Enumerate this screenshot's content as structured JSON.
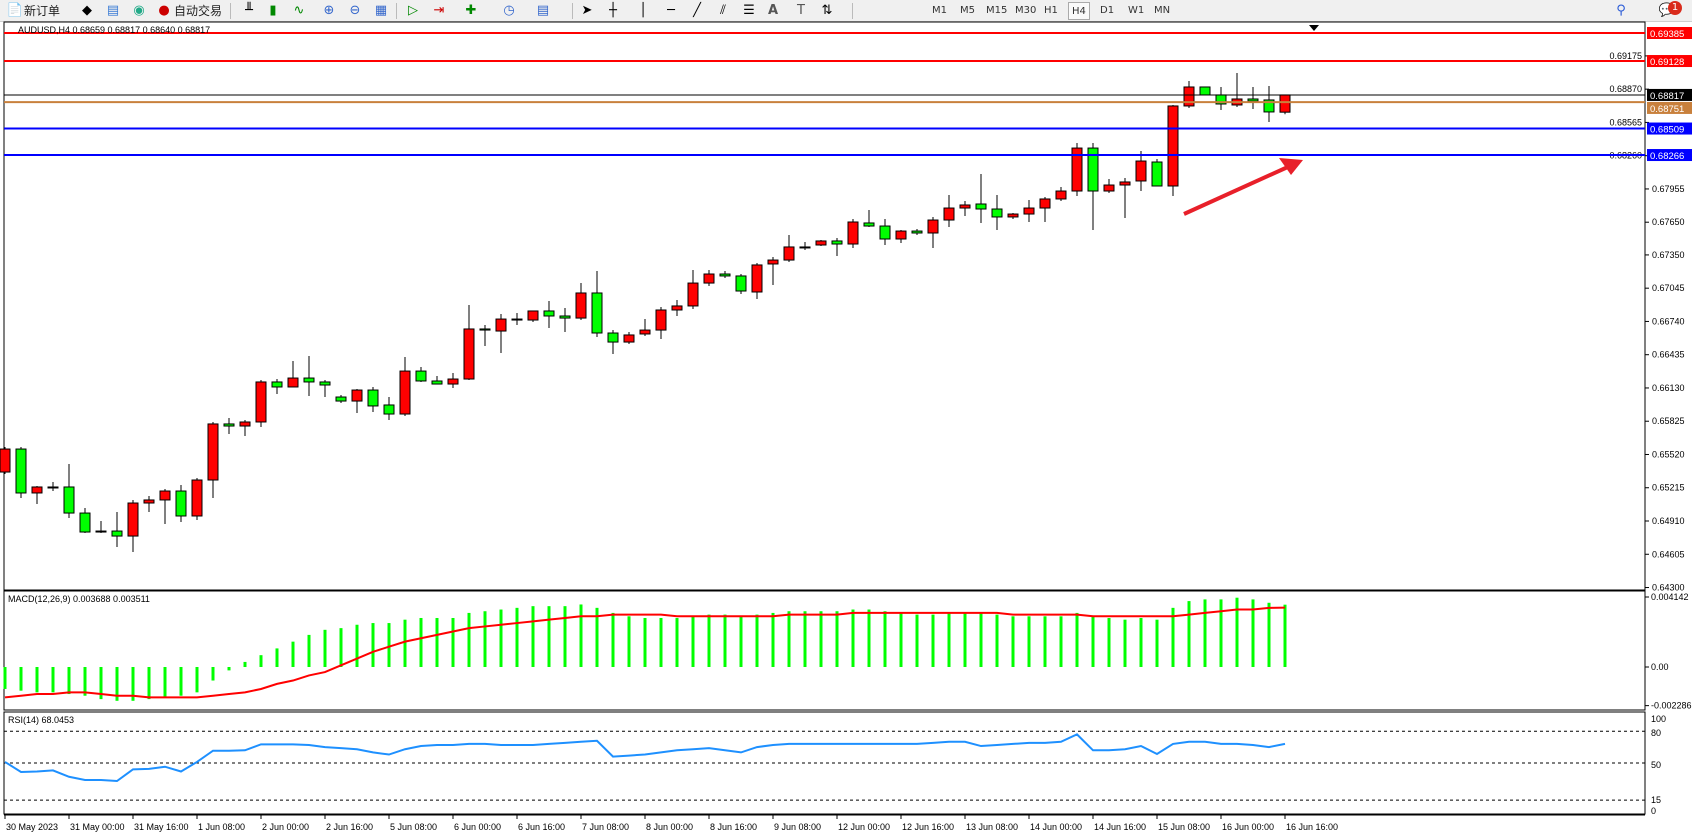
{
  "toolbar": {
    "new_order": "新订单",
    "auto_trading": "自动交易",
    "timeframes": [
      "M1",
      "M5",
      "M15",
      "M30",
      "H1",
      "H4",
      "D1",
      "W1",
      "MN"
    ],
    "active_timeframe": "H4",
    "notification_count": "1",
    "icons": [
      "new-order-icon",
      "history-center-icon",
      "market-watch-icon",
      "signals-icon",
      "auto-trading-icon",
      "bar-chart-icon",
      "candlestick-icon",
      "line-chart-icon",
      "zoom-in-icon",
      "zoom-out-icon",
      "tile-windows-icon",
      "auto-scroll-icon",
      "chart-shift-icon",
      "indicators-icon",
      "periods-icon",
      "templates-icon",
      "cursor-icon",
      "crosshair-icon",
      "vertical-line-icon",
      "horizontal-line-icon",
      "trendline-icon",
      "equidistant-channel-icon",
      "fibonacci-icon",
      "text-icon",
      "text-label-icon",
      "arrows-icon",
      "search-icon",
      "chat-icon"
    ]
  },
  "chart_header": "AUDUSD,H4  0.68659 0.68817 0.68640 0.68817",
  "colors": {
    "bull": "#ff0000",
    "bear": "#00ff00",
    "resistance": "#ff0000",
    "support": "#0000ff",
    "orange_line": "#c8803c",
    "rsi": "#1e90ff",
    "macd_hist": "#00ff00",
    "macd_signal": "#ff0000",
    "arrow": "#e8202a"
  },
  "chart_data": [
    {
      "type": "candlestick",
      "symbol": "AUDUSD",
      "price_ticks": [
        "0.69175",
        "0.68870",
        "0.68565",
        "0.68260",
        "0.67955",
        "0.67650",
        "0.67350",
        "0.67045",
        "0.66740",
        "0.66435",
        "0.66130",
        "0.65825",
        "0.65520",
        "0.65215",
        "0.64910",
        "0.64605",
        "0.64300"
      ],
      "ylim": [
        0.643,
        0.694
      ],
      "time_labels": [
        "30 May 2023",
        "31 May 00:00",
        "31 May 16:00",
        "1 Jun 08:00",
        "2 Jun 00:00",
        "2 Jun 16:00",
        "5 Jun 08:00",
        "6 Jun 00:00",
        "6 Jun 16:00",
        "7 Jun 08:00",
        "8 Jun 00:00",
        "8 Jun 16:00",
        "9 Jun 08:00",
        "12 Jun 00:00",
        "12 Jun 16:00",
        "13 Jun 08:00",
        "14 Jun 00:00",
        "14 Jun 16:00",
        "15 Jun 08:00",
        "16 Jun 00:00",
        "16 Jun 16:00"
      ],
      "ohlc": [
        [
          0.65359,
          0.65589,
          0.65341,
          0.6557
        ],
        [
          0.6557,
          0.65589,
          0.65121,
          0.65167
        ],
        [
          0.65167,
          0.65231,
          0.65066,
          0.65222
        ],
        [
          0.65222,
          0.65268,
          0.65185,
          0.65222
        ],
        [
          0.65222,
          0.65433,
          0.64938,
          0.64983
        ],
        [
          0.64983,
          0.65029,
          0.648,
          0.64809
        ],
        [
          0.64818,
          0.6491,
          0.648,
          0.64809
        ],
        [
          0.64818,
          0.64993,
          0.64672,
          0.64772
        ],
        [
          0.64772,
          0.65103,
          0.64626,
          0.65075
        ],
        [
          0.65075,
          0.65139,
          0.64993,
          0.65103
        ],
        [
          0.65103,
          0.65203,
          0.64883,
          0.65185
        ],
        [
          0.65185,
          0.6524,
          0.64901,
          0.64956
        ],
        [
          0.64956,
          0.65304,
          0.64919,
          0.65286
        ],
        [
          0.65286,
          0.65818,
          0.65121,
          0.658
        ],
        [
          0.658,
          0.65855,
          0.65708,
          0.65781
        ],
        [
          0.65781,
          0.65836,
          0.65689,
          0.65818
        ],
        [
          0.65818,
          0.66203,
          0.65772,
          0.66185
        ],
        [
          0.66185,
          0.66212,
          0.66075,
          0.66139
        ],
        [
          0.66139,
          0.66377,
          0.66139,
          0.66221
        ],
        [
          0.66221,
          0.66423,
          0.66056,
          0.66185
        ],
        [
          0.66185,
          0.66203,
          0.66047,
          0.66157
        ],
        [
          0.66047,
          0.66065,
          0.65992,
          0.6601
        ],
        [
          0.6601,
          0.6612,
          0.659,
          0.66111
        ],
        [
          0.66111,
          0.66139,
          0.6591,
          0.65965
        ],
        [
          0.65974,
          0.66047,
          0.65836,
          0.65891
        ],
        [
          0.65891,
          0.66414,
          0.65873,
          0.66285
        ],
        [
          0.66285,
          0.66322,
          0.66185,
          0.66194
        ],
        [
          0.66194,
          0.6624,
          0.66166,
          0.66166
        ],
        [
          0.66166,
          0.66267,
          0.6613,
          0.66212
        ],
        [
          0.66212,
          0.66891,
          0.66203,
          0.66671
        ],
        [
          0.66671,
          0.66707,
          0.66515,
          0.66661
        ],
        [
          0.66652,
          0.66808,
          0.66451,
          0.66762
        ],
        [
          0.66762,
          0.66817,
          0.66707,
          0.66753
        ],
        [
          0.66753,
          0.66836,
          0.66735,
          0.66836
        ],
        [
          0.66836,
          0.66927,
          0.6668,
          0.6679
        ],
        [
          0.6679,
          0.66863,
          0.66643,
          0.66771
        ],
        [
          0.66771,
          0.67092,
          0.66753,
          0.67001
        ],
        [
          0.67001,
          0.67202,
          0.66597,
          0.66634
        ],
        [
          0.66634,
          0.66661,
          0.66441,
          0.66551
        ],
        [
          0.66551,
          0.66643,
          0.66533,
          0.66616
        ],
        [
          0.66625,
          0.66762,
          0.66606,
          0.66661
        ],
        [
          0.66661,
          0.66872,
          0.66579,
          0.66845
        ],
        [
          0.66845,
          0.66937,
          0.6679,
          0.66882
        ],
        [
          0.66882,
          0.67212,
          0.66854,
          0.67092
        ],
        [
          0.67092,
          0.67212,
          0.67065,
          0.67175
        ],
        [
          0.67175,
          0.67202,
          0.67138,
          0.67157
        ],
        [
          0.67157,
          0.67175,
          0.66992,
          0.67019
        ],
        [
          0.6701,
          0.67276,
          0.66946,
          0.67258
        ],
        [
          0.67267,
          0.67331,
          0.67074,
          0.67303
        ],
        [
          0.67303,
          0.67533,
          0.67285,
          0.67423
        ],
        [
          0.67423,
          0.67468,
          0.67395,
          0.67423
        ],
        [
          0.67441,
          0.67487,
          0.67432,
          0.67478
        ],
        [
          0.67478,
          0.67505,
          0.6734,
          0.6745
        ],
        [
          0.6745,
          0.67679,
          0.67413,
          0.67652
        ],
        [
          0.67643,
          0.67762,
          0.67606,
          0.67615
        ],
        [
          0.67615,
          0.67679,
          0.67441,
          0.67496
        ],
        [
          0.67496,
          0.67579,
          0.67459,
          0.67569
        ],
        [
          0.67569,
          0.67588,
          0.67533,
          0.67551
        ],
        [
          0.67551,
          0.67698,
          0.67413,
          0.6767
        ],
        [
          0.6767,
          0.67899,
          0.67606,
          0.6778
        ],
        [
          0.6778,
          0.67844,
          0.67707,
          0.67808
        ],
        [
          0.67817,
          0.68092,
          0.67643,
          0.67771
        ],
        [
          0.67771,
          0.67899,
          0.67579,
          0.67698
        ],
        [
          0.67698,
          0.67734,
          0.67679,
          0.67725
        ],
        [
          0.67725,
          0.67854,
          0.67652,
          0.6778
        ],
        [
          0.6778,
          0.67881,
          0.67652,
          0.67863
        ],
        [
          0.67863,
          0.67973,
          0.67844,
          0.67936
        ],
        [
          0.67936,
          0.68376,
          0.6789,
          0.6833
        ],
        [
          0.6833,
          0.68376,
          0.67579,
          0.67936
        ],
        [
          0.67936,
          0.68046,
          0.67918,
          0.67991
        ],
        [
          0.67991,
          0.68055,
          0.67689,
          0.68019
        ],
        [
          0.68028,
          0.68303,
          0.67936,
          0.68211
        ],
        [
          0.68202,
          0.6823,
          0.67982,
          0.67982
        ],
        [
          0.67982,
          0.68725,
          0.6789,
          0.68716
        ],
        [
          0.68716,
          0.68945,
          0.68697,
          0.6889
        ],
        [
          0.6889,
          0.6889,
          0.68817,
          0.68817
        ],
        [
          0.68817,
          0.6889,
          0.68679,
          0.68734
        ],
        [
          0.68725,
          0.69018,
          0.68706,
          0.6878
        ],
        [
          0.6878,
          0.6889,
          0.68688,
          0.68761
        ],
        [
          0.68771,
          0.68899,
          0.68569,
          0.68661
        ],
        [
          0.68659,
          0.68817,
          0.6864,
          0.68817
        ]
      ],
      "hlines": [
        {
          "price": "0.69385",
          "color": "#ff0000"
        },
        {
          "price": "0.69128",
          "color": "#ff0000"
        },
        {
          "price": "0.68817",
          "color": "#000000"
        },
        {
          "price": "0.68751",
          "color": "#c8803c"
        },
        {
          "price": "0.68509",
          "color": "#0000ff"
        },
        {
          "price": "0.68266",
          "color": "#0000ff"
        }
      ]
    },
    {
      "type": "bar",
      "title": "MACD(12,26,9) 0.003688 0.003511",
      "ticks": [
        "0.004142",
        "0.00",
        "-0.002286"
      ],
      "ylim": [
        -0.002286,
        0.004142
      ],
      "histogram": [
        -0.0013,
        -0.0014,
        -0.0015,
        -0.0015,
        -0.0016,
        -0.0017,
        -0.0019,
        -0.002,
        -0.002,
        -0.0019,
        -0.0018,
        -0.0017,
        -0.0015,
        -0.0008,
        -0.0002,
        0.0003,
        0.0007,
        0.0011,
        0.0015,
        0.0019,
        0.0022,
        0.0023,
        0.0025,
        0.0026,
        0.0026,
        0.0028,
        0.0029,
        0.0029,
        0.0029,
        0.0032,
        0.0033,
        0.0034,
        0.0035,
        0.0036,
        0.0036,
        0.0036,
        0.0037,
        0.0035,
        0.0032,
        0.003,
        0.0029,
        0.0029,
        0.0029,
        0.003,
        0.0031,
        0.0031,
        0.003,
        0.0031,
        0.0032,
        0.0033,
        0.0033,
        0.0033,
        0.0033,
        0.0034,
        0.0034,
        0.0033,
        0.0032,
        0.0031,
        0.0031,
        0.0032,
        0.0032,
        0.0032,
        0.0031,
        0.003,
        0.003,
        0.003,
        0.003,
        0.0032,
        0.003,
        0.0029,
        0.0028,
        0.0029,
        0.0028,
        0.0035,
        0.0039,
        0.004,
        0.004,
        0.0041,
        0.004,
        0.0038,
        0.003688
      ],
      "signal": [
        -0.0018,
        -0.0017,
        -0.0016,
        -0.0016,
        -0.0015,
        -0.0015,
        -0.0016,
        -0.0017,
        -0.0017,
        -0.0018,
        -0.0018,
        -0.0018,
        -0.0018,
        -0.0017,
        -0.0016,
        -0.0015,
        -0.0013,
        -0.001,
        -0.0008,
        -0.0005,
        -0.0003,
        0.0001,
        0.0005,
        0.0009,
        0.0012,
        0.0015,
        0.0017,
        0.0019,
        0.0021,
        0.0023,
        0.0024,
        0.0025,
        0.0026,
        0.0027,
        0.0028,
        0.0029,
        0.003,
        0.003,
        0.0031,
        0.0031,
        0.0031,
        0.0031,
        0.003,
        0.003,
        0.003,
        0.003,
        0.003,
        0.003,
        0.003,
        0.0031,
        0.0031,
        0.0031,
        0.0031,
        0.0032,
        0.0032,
        0.0032,
        0.0032,
        0.0032,
        0.0032,
        0.0032,
        0.0032,
        0.0032,
        0.0032,
        0.0031,
        0.0031,
        0.0031,
        0.0031,
        0.0031,
        0.003,
        0.003,
        0.003,
        0.003,
        0.003,
        0.003,
        0.0031,
        0.0032,
        0.0033,
        0.0034,
        0.0034,
        0.0035,
        0.003511
      ]
    },
    {
      "type": "line",
      "title": "RSI(14) 68.0453",
      "ticks": [
        "100",
        "80",
        "50",
        "15",
        "0"
      ],
      "levels": [
        80,
        50,
        15
      ],
      "ylim": [
        0,
        100
      ],
      "values": [
        51,
        41.5,
        42,
        43,
        37,
        34,
        34,
        33,
        44,
        44.5,
        46.5,
        42,
        51,
        61.6,
        61.6,
        62,
        67.6,
        67.6,
        67.6,
        67,
        65,
        64,
        63,
        60,
        58,
        63,
        66,
        67,
        67,
        68,
        68,
        67,
        67,
        67,
        68,
        69,
        70,
        71,
        56,
        57,
        58,
        60,
        62,
        63,
        64,
        62,
        60,
        65,
        67,
        68,
        68,
        68,
        68,
        68,
        68,
        68,
        68,
        68,
        69,
        70,
        70,
        66,
        67,
        68,
        69,
        69,
        70,
        77,
        62,
        62,
        63,
        66,
        58.5,
        68,
        70,
        70,
        68,
        68,
        67,
        65,
        68.0453
      ]
    }
  ]
}
